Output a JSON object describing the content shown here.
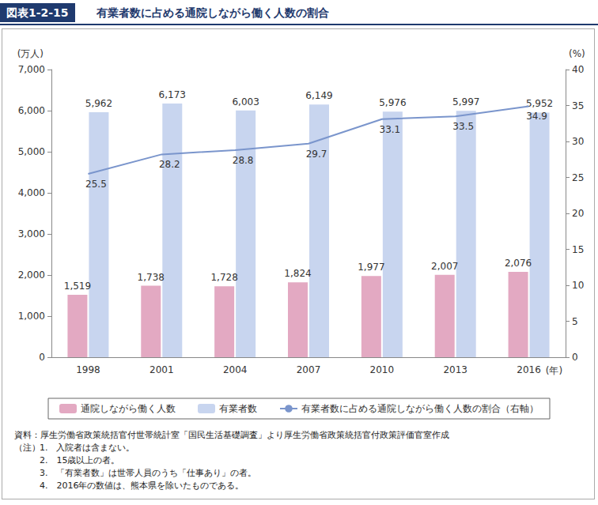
{
  "chart_data": {
    "type": "bar",
    "figure_label": "図表1-2-15",
    "title": "有業者数に占める通院しながら働く人数の割合",
    "ylabel": "(万人)",
    "y2label": "(%)",
    "xlabel": "(年)",
    "categories": [
      "1998",
      "2001",
      "2004",
      "2007",
      "2010",
      "2013",
      "2016"
    ],
    "series": [
      {
        "name": "通院しながら働く人数",
        "type": "bar",
        "color": "#e3a9c2",
        "values": [
          1519,
          1738,
          1728,
          1824,
          1977,
          2007,
          2076
        ],
        "value_labels": [
          "1,519",
          "1,738",
          "1,728",
          "1,824",
          "1,977",
          "2,007",
          "2,076"
        ]
      },
      {
        "name": "有業者数",
        "type": "bar",
        "color": "#c8d5ef",
        "values": [
          5962,
          6173,
          6003,
          6149,
          5976,
          5997,
          5952
        ],
        "value_labels": [
          "5,962",
          "6,173",
          "6,003",
          "6,149",
          "5,976",
          "5,997",
          "5,952"
        ]
      },
      {
        "name": "有業者数に占める通院しながら働く人数の割合（右軸）",
        "type": "line",
        "axis": "y2",
        "color": "#7a95cc",
        "values": [
          25.5,
          28.2,
          28.8,
          29.7,
          33.1,
          33.5,
          34.9
        ]
      }
    ],
    "ylim": [
      0,
      7000
    ],
    "yticks": [
      0,
      {
        "value": 1000,
        "label": "1,000"
      },
      {
        "value": 2000,
        "label": "2,000"
      },
      {
        "value": 3000,
        "label": "3,000"
      },
      {
        "value": 4000,
        "label": "4,000"
      },
      {
        "value": 5000,
        "label": "5,000"
      },
      {
        "value": 6000,
        "label": "6,000"
      },
      {
        "value": 7000,
        "label": "7,000"
      }
    ],
    "y2lim": [
      0,
      40
    ],
    "y2ticks": [
      0,
      5,
      10,
      15,
      20,
      25,
      30,
      35,
      40
    ],
    "data_labels": true,
    "grid": false,
    "legend": "bottom",
    "source": "資料：厚生労働省政策統括官付世帯統計室「国民生活基礎調査」より厚生労働省政策統括官付政策評価官室作成",
    "notes_label": "（注）",
    "notes": [
      "1.　入院者は含まない。",
      "2.　15歳以上の者。",
      "3.　「有業者数」は世帯人員のうち「仕事あり」の者。",
      "4.　2016年の数値は、熊本県を除いたものである。"
    ]
  }
}
